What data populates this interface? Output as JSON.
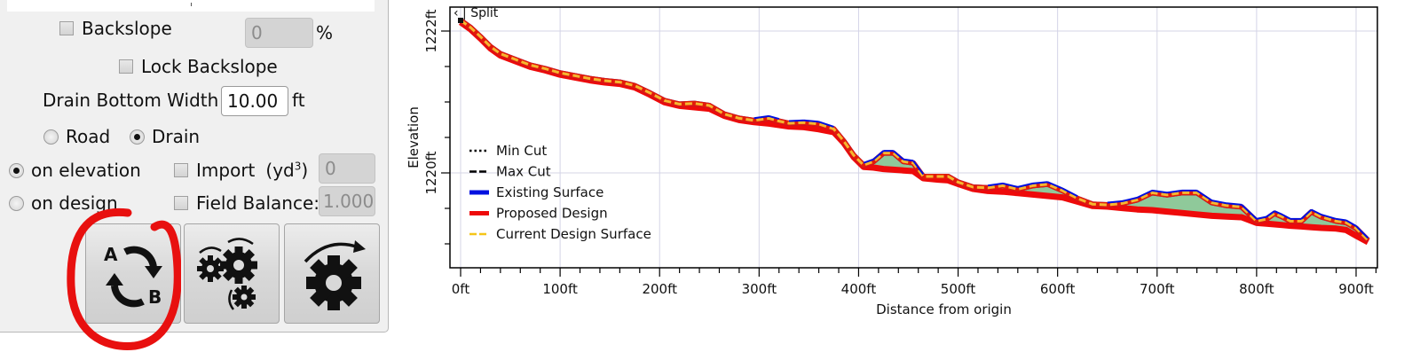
{
  "panel": {
    "backslope": {
      "label": "Backslope",
      "checked": false,
      "value": "0",
      "unit": "%"
    },
    "lock_backslope": {
      "label": "Lock Backslope",
      "checked": false
    },
    "drain_bottom_width": {
      "label": "Drain Bottom Width",
      "value": "10.00",
      "unit": "ft"
    },
    "mode": {
      "options": [
        "Road",
        "Drain"
      ],
      "selected": "Drain"
    },
    "reference": {
      "options": [
        "on elevation",
        "on design"
      ],
      "selected": "on elevation"
    },
    "import": {
      "label": "Import",
      "unit_prefix": "(yd",
      "unit_sup": "3",
      "unit_suffix": ")",
      "checked": false,
      "value": "0"
    },
    "field_balance": {
      "label": "Field Balance:",
      "checked": false,
      "value": "1.000"
    },
    "buttons": [
      {
        "name": "swap-a-b",
        "icon": "swap-a-b-icon"
      },
      {
        "name": "multi-gear-rotate",
        "icon": "gears-rotate-icon"
      },
      {
        "name": "gear-rotate",
        "icon": "gear-rotate-icon"
      }
    ],
    "annotation_color": "#e8100f"
  },
  "chart_data": {
    "type": "line",
    "title": "",
    "xlabel": "Distance from origin",
    "ylabel": "Elevation",
    "xlim": [
      0,
      920
    ],
    "ylim": [
      1218.7,
      1222.35
    ],
    "x_ticks": [
      0,
      100,
      200,
      300,
      400,
      500,
      600,
      700,
      800,
      900
    ],
    "x_tick_labels": [
      "0ft",
      "100ft",
      "200ft",
      "300ft",
      "400ft",
      "500ft",
      "600ft",
      "700ft",
      "800ft",
      "900ft"
    ],
    "x_minor_step": 20,
    "y_ticks": [
      1220,
      1222
    ],
    "y_tick_labels": [
      "1220ft",
      "1222ft"
    ],
    "y_minor_step": 0.5,
    "grid": true,
    "legend_position": "center-left",
    "legend": [
      {
        "label": "Min Cut",
        "style": "dotted",
        "color": "#000000"
      },
      {
        "label": "Max Cut",
        "style": "dashed",
        "color": "#000000"
      },
      {
        "label": "Existing Surface",
        "style": "solid",
        "color": "#0010e0"
      },
      {
        "label": "Proposed Design",
        "style": "solid",
        "color": "#ee0a0a"
      },
      {
        "label": "Current Design Surface",
        "style": "dashed",
        "color": "#f5c518"
      }
    ],
    "annotations": [
      {
        "text": "Split",
        "x": 0,
        "y": 1222.15
      }
    ],
    "fill_color": "#8fc99a",
    "series": [
      {
        "name": "Existing Surface",
        "x": [
          0,
          10,
          20,
          30,
          40,
          55,
          70,
          85,
          100,
          115,
          130,
          145,
          160,
          175,
          190,
          205,
          220,
          235,
          250,
          265,
          280,
          295,
          310,
          320,
          330,
          345,
          360,
          375,
          385,
          395,
          405,
          415,
          425,
          435,
          445,
          455,
          465,
          480,
          490,
          500,
          515,
          530,
          545,
          560,
          575,
          590,
          605,
          620,
          635,
          650,
          665,
          680,
          695,
          710,
          725,
          740,
          755,
          770,
          785,
          800,
          810,
          818,
          826,
          834,
          845,
          855,
          865,
          880,
          890,
          900,
          912
        ],
        "y": [
          1222.15,
          1222.05,
          1221.92,
          1221.78,
          1221.68,
          1221.6,
          1221.52,
          1221.47,
          1221.41,
          1221.37,
          1221.33,
          1221.3,
          1221.28,
          1221.23,
          1221.13,
          1221.02,
          1220.97,
          1220.98,
          1220.95,
          1220.83,
          1220.77,
          1220.74,
          1220.77,
          1220.73,
          1220.7,
          1220.71,
          1220.69,
          1220.62,
          1220.45,
          1220.25,
          1220.11,
          1220.16,
          1220.28,
          1220.28,
          1220.16,
          1220.14,
          1219.95,
          1219.95,
          1219.95,
          1219.87,
          1219.8,
          1219.79,
          1219.82,
          1219.77,
          1219.82,
          1219.84,
          1219.75,
          1219.64,
          1219.56,
          1219.55,
          1219.57,
          1219.62,
          1219.72,
          1219.69,
          1219.72,
          1219.72,
          1219.58,
          1219.54,
          1219.52,
          1219.32,
          1219.35,
          1219.43,
          1219.38,
          1219.32,
          1219.32,
          1219.45,
          1219.38,
          1219.32,
          1219.3,
          1219.22,
          1219.05
        ]
      },
      {
        "name": "Proposed Design",
        "x": [
          0,
          10,
          20,
          30,
          40,
          55,
          70,
          85,
          100,
          115,
          130,
          145,
          160,
          175,
          190,
          205,
          220,
          235,
          250,
          265,
          280,
          295,
          310,
          320,
          330,
          345,
          360,
          375,
          385,
          395,
          405,
          415,
          425,
          435,
          445,
          455,
          465,
          480,
          490,
          500,
          515,
          530,
          545,
          560,
          575,
          590,
          605,
          620,
          635,
          650,
          665,
          680,
          695,
          710,
          725,
          740,
          755,
          770,
          785,
          800,
          810,
          818,
          826,
          834,
          845,
          855,
          865,
          880,
          890,
          900,
          912
        ],
        "y": [
          1222.15,
          1222.05,
          1221.92,
          1221.78,
          1221.68,
          1221.6,
          1221.52,
          1221.47,
          1221.41,
          1221.37,
          1221.33,
          1221.3,
          1221.28,
          1221.23,
          1221.13,
          1221.02,
          1220.97,
          1220.95,
          1220.93,
          1220.83,
          1220.77,
          1220.74,
          1220.72,
          1220.7,
          1220.68,
          1220.67,
          1220.64,
          1220.6,
          1220.45,
          1220.25,
          1220.11,
          1220.1,
          1220.08,
          1220.07,
          1220.06,
          1220.05,
          1219.95,
          1219.93,
          1219.92,
          1219.87,
          1219.8,
          1219.77,
          1219.76,
          1219.74,
          1219.72,
          1219.7,
          1219.68,
          1219.62,
          1219.56,
          1219.55,
          1219.53,
          1219.51,
          1219.5,
          1219.48,
          1219.46,
          1219.44,
          1219.42,
          1219.41,
          1219.4,
          1219.32,
          1219.31,
          1219.3,
          1219.29,
          1219.28,
          1219.27,
          1219.26,
          1219.25,
          1219.24,
          1219.22,
          1219.14,
          1219.05
        ]
      }
    ]
  }
}
